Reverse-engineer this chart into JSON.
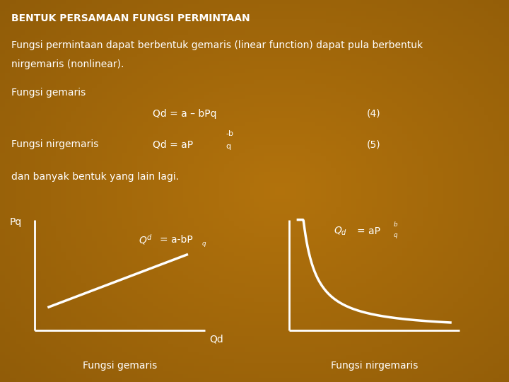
{
  "title": "BENTUK PERSAMAAN FUNGSI PERMINTAAN",
  "bg_color": "#7B4A08",
  "text_color": "#FFFFFF",
  "body_text1": "Fungsi permintaan dapat berbentuk gemaris (linear function) dapat pula berbentuk",
  "body_text2": "nirgemaris (nonlinear).",
  "line1_label": "Fungsi gemaris",
  "line1_eq": "Qd = a – bPq",
  "line1_num": "(4)",
  "line2_label": "Fungsi nirgemaris",
  "line2_num": "(5)",
  "dan_text": "dan banyak bentuk yang lain lagi.",
  "graph1_ylabel": "Pq",
  "graph1_xlabel": "Qd",
  "graph1_label": "Fungsi gemaris",
  "graph2_label": "Fungsi nirgemaris",
  "shared_xlabel": "Qd",
  "title_fontsize": 10,
  "body_fontsize": 10,
  "label_fontsize": 10,
  "graph_fontsize": 9
}
